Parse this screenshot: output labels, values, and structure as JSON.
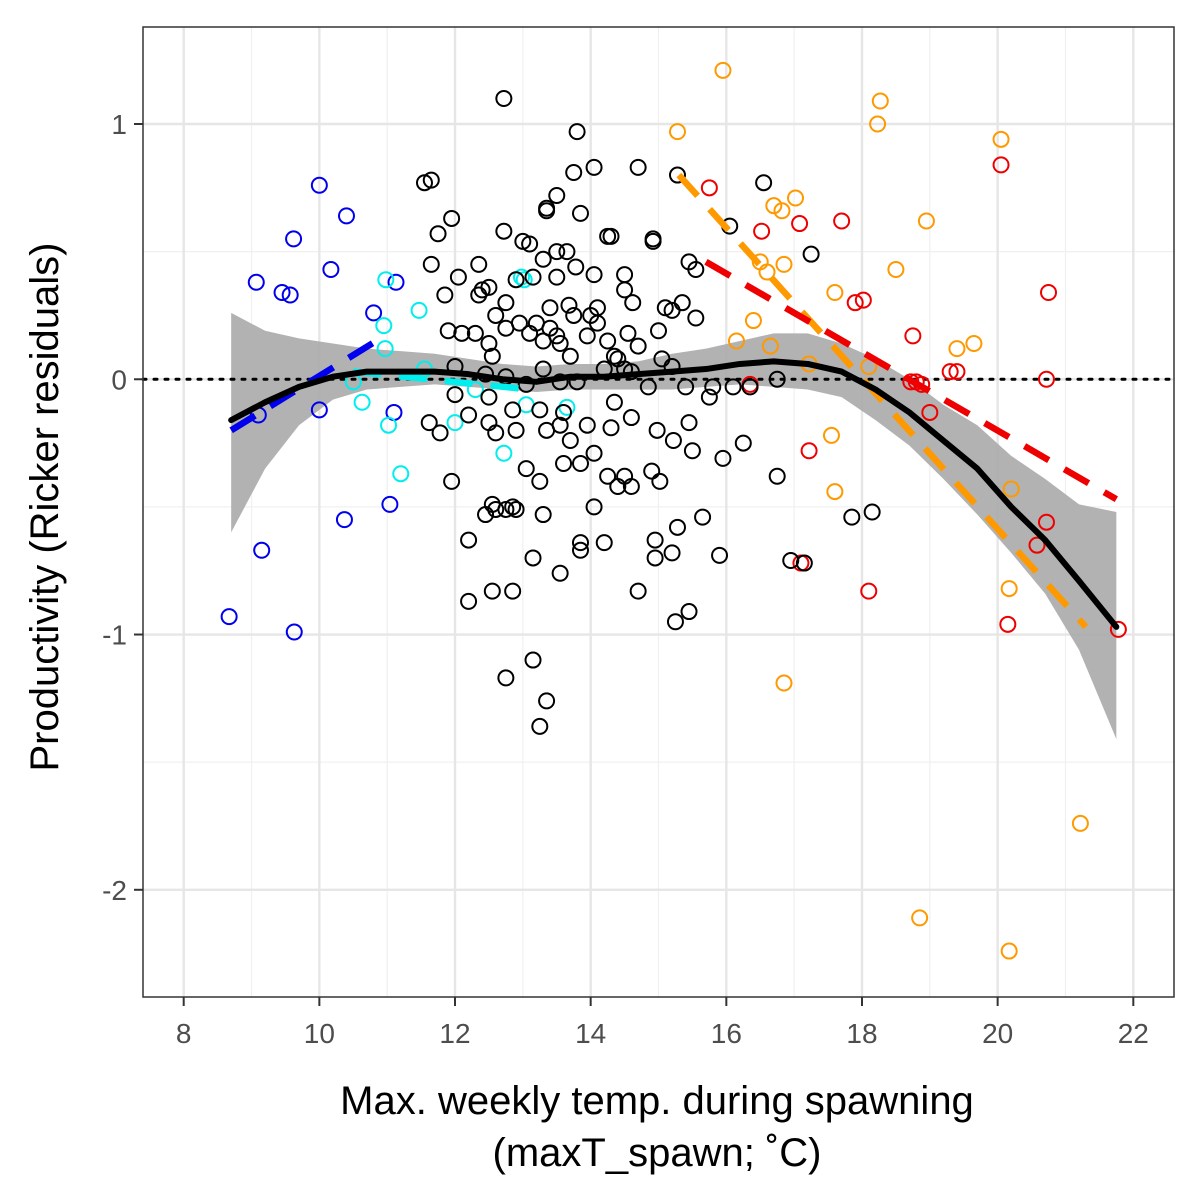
{
  "chart_data": {
    "type": "scatter",
    "xlabel_lines": [
      "Max. weekly temp. during spawning",
      "(maxT_spawn; ˚C)"
    ],
    "ylabel": "Productivity (Ricker residuals)",
    "xlim": [
      7.4,
      22.6
    ],
    "ylim": [
      -2.42,
      1.38
    ],
    "x_ticks": [
      8,
      10,
      12,
      14,
      16,
      18,
      20,
      22
    ],
    "y_ticks": [
      1,
      0,
      -1,
      -2
    ],
    "y_tick_labels": [
      "1",
      "0",
      "-1",
      "-2"
    ],
    "grid": true,
    "reference_line_y": 0,
    "colors": {
      "black": "#000000",
      "blue": "#0000ee",
      "cyan": "#00eeee",
      "red": "#ee0000",
      "orange": "#ff9900",
      "ribbon": "#aaaaaa"
    },
    "series": [
      {
        "color_key": "blue",
        "points": [
          [
            8.67,
            -0.93
          ],
          [
            9.07,
            0.38
          ],
          [
            9.1,
            -0.14
          ],
          [
            9.15,
            -0.67
          ],
          [
            9.45,
            0.34
          ],
          [
            9.57,
            0.33
          ],
          [
            9.62,
            0.55
          ],
          [
            9.63,
            -0.99
          ],
          [
            10.0,
            0.76
          ],
          [
            10.0,
            -0.12
          ],
          [
            10.17,
            0.43
          ],
          [
            10.37,
            -0.55
          ],
          [
            10.4,
            0.64
          ],
          [
            10.8,
            0.26
          ],
          [
            11.04,
            -0.49
          ],
          [
            11.1,
            -0.13
          ],
          [
            11.13,
            0.38
          ]
        ],
        "fit": [
          [
            8.7,
            -0.2
          ],
          [
            10.9,
            0.16
          ]
        ]
      },
      {
        "color_key": "cyan",
        "points": [
          [
            10.5,
            -0.01
          ],
          [
            10.63,
            -0.09
          ],
          [
            10.95,
            0.21
          ],
          [
            10.97,
            0.12
          ],
          [
            10.98,
            0.39
          ],
          [
            11.02,
            -0.18
          ],
          [
            11.2,
            -0.37
          ],
          [
            11.47,
            0.27
          ],
          [
            11.55,
            0.04
          ],
          [
            12.0,
            -0.17
          ],
          [
            12.3,
            -0.04
          ],
          [
            12.72,
            -0.29
          ],
          [
            12.98,
            0.4
          ],
          [
            13.02,
            0.39
          ],
          [
            13.05,
            -0.1
          ],
          [
            13.65,
            -0.11
          ]
        ],
        "fit": [
          [
            10.5,
            0.03
          ],
          [
            13.1,
            -0.04
          ]
        ]
      },
      {
        "color_key": "orange",
        "points": [
          [
            15.28,
            0.97
          ],
          [
            15.95,
            1.21
          ],
          [
            16.5,
            0.46
          ],
          [
            16.6,
            0.42
          ],
          [
            16.65,
            0.13
          ],
          [
            16.7,
            0.68
          ],
          [
            16.82,
            0.66
          ],
          [
            16.85,
            0.45
          ],
          [
            16.85,
            -1.19
          ],
          [
            17.02,
            0.71
          ],
          [
            17.22,
            0.06
          ],
          [
            17.55,
            -0.22
          ],
          [
            17.6,
            -0.44
          ],
          [
            17.6,
            0.34
          ],
          [
            18.1,
            0.05
          ],
          [
            18.23,
            1.0
          ],
          [
            18.27,
            1.09
          ],
          [
            18.5,
            0.43
          ],
          [
            18.85,
            -2.11
          ],
          [
            18.95,
            0.62
          ],
          [
            19.4,
            0.12
          ],
          [
            19.65,
            0.14
          ],
          [
            20.05,
            0.94
          ],
          [
            20.17,
            -0.82
          ],
          [
            20.17,
            -2.24
          ],
          [
            20.2,
            -0.43
          ],
          [
            21.22,
            -1.74
          ],
          [
            16.4,
            0.23
          ],
          [
            16.15,
            0.15
          ]
        ],
        "fit": [
          [
            15.3,
            0.8
          ],
          [
            21.3,
            -0.97
          ]
        ]
      },
      {
        "color_key": "red",
        "points": [
          [
            15.75,
            0.75
          ],
          [
            16.35,
            -0.02
          ],
          [
            16.52,
            0.58
          ],
          [
            17.08,
            0.61
          ],
          [
            17.1,
            -0.72
          ],
          [
            17.22,
            -0.28
          ],
          [
            17.7,
            0.62
          ],
          [
            17.9,
            0.3
          ],
          [
            18.02,
            0.31
          ],
          [
            18.1,
            -0.83
          ],
          [
            18.72,
            -0.01
          ],
          [
            18.75,
            0.17
          ],
          [
            18.8,
            -0.01
          ],
          [
            18.88,
            -0.02
          ],
          [
            19.0,
            -0.13
          ],
          [
            19.3,
            0.03
          ],
          [
            19.4,
            0.03
          ],
          [
            20.05,
            0.84
          ],
          [
            20.15,
            -0.96
          ],
          [
            20.58,
            -0.65
          ],
          [
            20.72,
            -0.56
          ],
          [
            20.72,
            0.0
          ],
          [
            20.75,
            0.34
          ],
          [
            21.78,
            -0.98
          ]
        ],
        "fit": [
          [
            15.7,
            0.46
          ],
          [
            21.75,
            -0.47
          ]
        ]
      },
      {
        "color_key": "black",
        "points": [
          [
            12.72,
            1.1
          ],
          [
            13.8,
            0.97
          ],
          [
            15.28,
            0.8
          ],
          [
            16.55,
            0.77
          ],
          [
            11.55,
            0.77
          ],
          [
            11.65,
            0.78
          ],
          [
            14.05,
            0.83
          ],
          [
            14.7,
            0.83
          ],
          [
            13.75,
            0.81
          ],
          [
            13.5,
            0.72
          ],
          [
            13.85,
            0.65
          ],
          [
            13.35,
            0.67
          ],
          [
            13.35,
            0.66
          ],
          [
            12.72,
            0.58
          ],
          [
            11.95,
            0.63
          ],
          [
            13.0,
            0.54
          ],
          [
            13.1,
            0.53
          ],
          [
            14.25,
            0.56
          ],
          [
            14.3,
            0.56
          ],
          [
            14.92,
            0.55
          ],
          [
            14.92,
            0.54
          ],
          [
            11.75,
            0.57
          ],
          [
            12.05,
            0.4
          ],
          [
            11.65,
            0.45
          ],
          [
            12.35,
            0.45
          ],
          [
            13.78,
            0.44
          ],
          [
            14.05,
            0.41
          ],
          [
            14.5,
            0.41
          ],
          [
            14.5,
            0.35
          ],
          [
            13.3,
            0.47
          ],
          [
            13.5,
            0.5
          ],
          [
            13.65,
            0.5
          ],
          [
            15.45,
            0.46
          ],
          [
            15.55,
            0.43
          ],
          [
            16.05,
            0.6
          ],
          [
            17.25,
            0.49
          ],
          [
            12.4,
            0.35
          ],
          [
            12.5,
            0.36
          ],
          [
            12.9,
            0.39
          ],
          [
            13.15,
            0.4
          ],
          [
            13.5,
            0.4
          ],
          [
            13.4,
            0.28
          ],
          [
            13.68,
            0.29
          ],
          [
            14.1,
            0.28
          ],
          [
            14.62,
            0.3
          ],
          [
            15.35,
            0.3
          ],
          [
            15.1,
            0.28
          ],
          [
            15.2,
            0.27
          ],
          [
            12.35,
            0.33
          ],
          [
            12.75,
            0.3
          ],
          [
            12.6,
            0.25
          ],
          [
            12.75,
            0.2
          ],
          [
            12.95,
            0.22
          ],
          [
            13.2,
            0.22
          ],
          [
            13.4,
            0.2
          ],
          [
            13.5,
            0.17
          ],
          [
            13.55,
            0.14
          ],
          [
            13.75,
            0.25
          ],
          [
            13.95,
            0.17
          ],
          [
            14.0,
            0.25
          ],
          [
            14.1,
            0.22
          ],
          [
            14.25,
            0.15
          ],
          [
            14.4,
            0.08
          ],
          [
            14.55,
            0.18
          ],
          [
            14.7,
            0.13
          ],
          [
            15.0,
            0.19
          ],
          [
            15.55,
            0.24
          ],
          [
            11.85,
            0.33
          ],
          [
            11.9,
            0.19
          ],
          [
            12.1,
            0.18
          ],
          [
            12.3,
            0.18
          ],
          [
            12.5,
            0.14
          ],
          [
            12.55,
            0.09
          ],
          [
            13.1,
            0.18
          ],
          [
            13.3,
            0.15
          ],
          [
            13.7,
            0.09
          ],
          [
            14.35,
            0.09
          ],
          [
            14.5,
            0.04
          ],
          [
            15.05,
            0.08
          ],
          [
            12.0,
            0.05
          ],
          [
            12.45,
            0.02
          ],
          [
            12.75,
            0.01
          ],
          [
            13.05,
            -0.02
          ],
          [
            13.3,
            0.04
          ],
          [
            13.55,
            -0.01
          ],
          [
            13.8,
            -0.01
          ],
          [
            14.2,
            0.04
          ],
          [
            14.6,
            0.03
          ],
          [
            14.85,
            -0.03
          ],
          [
            15.2,
            0.05
          ],
          [
            15.4,
            -0.03
          ],
          [
            15.8,
            -0.03
          ],
          [
            16.1,
            -0.03
          ],
          [
            16.35,
            -0.03
          ],
          [
            16.75,
            0.0
          ],
          [
            12.0,
            -0.06
          ],
          [
            12.5,
            -0.07
          ],
          [
            12.85,
            -0.12
          ],
          [
            13.25,
            -0.12
          ],
          [
            13.6,
            -0.13
          ],
          [
            14.35,
            -0.09
          ],
          [
            15.75,
            -0.07
          ],
          [
            11.62,
            -0.17
          ],
          [
            11.78,
            -0.21
          ],
          [
            12.2,
            -0.14
          ],
          [
            12.5,
            -0.17
          ],
          [
            12.6,
            -0.21
          ],
          [
            12.9,
            -0.2
          ],
          [
            13.35,
            -0.2
          ],
          [
            13.55,
            -0.18
          ],
          [
            13.7,
            -0.24
          ],
          [
            13.95,
            -0.18
          ],
          [
            14.3,
            -0.19
          ],
          [
            14.6,
            -0.15
          ],
          [
            14.98,
            -0.2
          ],
          [
            15.22,
            -0.24
          ],
          [
            15.45,
            -0.17
          ],
          [
            16.25,
            -0.25
          ],
          [
            13.6,
            -0.33
          ],
          [
            13.85,
            -0.33
          ],
          [
            14.05,
            -0.29
          ],
          [
            14.25,
            -0.38
          ],
          [
            14.5,
            -0.38
          ],
          [
            14.9,
            -0.36
          ],
          [
            15.02,
            -0.4
          ],
          [
            15.5,
            -0.28
          ],
          [
            15.95,
            -0.31
          ],
          [
            16.75,
            -0.38
          ],
          [
            11.95,
            -0.4
          ],
          [
            12.55,
            -0.49
          ],
          [
            12.85,
            -0.5
          ],
          [
            13.05,
            -0.35
          ],
          [
            13.25,
            -0.4
          ],
          [
            14.4,
            -0.42
          ],
          [
            14.6,
            -0.42
          ],
          [
            14.05,
            -0.5
          ],
          [
            12.45,
            -0.53
          ],
          [
            12.6,
            -0.51
          ],
          [
            12.75,
            -0.51
          ],
          [
            13.3,
            -0.53
          ],
          [
            15.28,
            -0.58
          ],
          [
            15.65,
            -0.54
          ],
          [
            16.95,
            -0.71
          ],
          [
            17.15,
            -0.72
          ],
          [
            17.85,
            -0.54
          ],
          [
            18.15,
            -0.52
          ],
          [
            12.2,
            -0.63
          ],
          [
            12.9,
            -0.51
          ],
          [
            13.85,
            -0.64
          ],
          [
            13.85,
            -0.67
          ],
          [
            14.2,
            -0.64
          ],
          [
            14.95,
            -0.63
          ],
          [
            14.95,
            -0.7
          ],
          [
            15.2,
            -0.68
          ],
          [
            15.9,
            -0.69
          ],
          [
            13.15,
            -0.7
          ],
          [
            13.55,
            -0.76
          ],
          [
            14.7,
            -0.83
          ],
          [
            15.25,
            -0.95
          ],
          [
            15.45,
            -0.91
          ],
          [
            12.2,
            -0.87
          ],
          [
            12.55,
            -0.83
          ],
          [
            12.85,
            -0.83
          ],
          [
            12.75,
            -1.17
          ],
          [
            13.15,
            -1.1
          ],
          [
            13.35,
            -1.26
          ],
          [
            13.25,
            -1.36
          ]
        ]
      }
    ],
    "smooth_line": [
      [
        8.7,
        -0.16
      ],
      [
        9.2,
        -0.09
      ],
      [
        9.7,
        -0.03
      ],
      [
        10.2,
        0.01
      ],
      [
        10.7,
        0.03
      ],
      [
        11.2,
        0.03
      ],
      [
        11.7,
        0.03
      ],
      [
        12.2,
        0.02
      ],
      [
        12.7,
        0.0
      ],
      [
        13.2,
        -0.01
      ],
      [
        13.7,
        0.01
      ],
      [
        14.2,
        0.01
      ],
      [
        14.7,
        0.02
      ],
      [
        15.2,
        0.03
      ],
      [
        15.7,
        0.04
      ],
      [
        16.2,
        0.06
      ],
      [
        16.7,
        0.07
      ],
      [
        17.2,
        0.06
      ],
      [
        17.7,
        0.03
      ],
      [
        18.2,
        -0.04
      ],
      [
        18.7,
        -0.13
      ],
      [
        19.2,
        -0.24
      ],
      [
        19.7,
        -0.35
      ],
      [
        20.2,
        -0.5
      ],
      [
        20.7,
        -0.63
      ],
      [
        21.2,
        -0.79
      ],
      [
        21.75,
        -0.97
      ]
    ],
    "ribbon": [
      [
        8.7,
        -0.6,
        0.26
      ],
      [
        9.2,
        -0.35,
        0.19
      ],
      [
        9.7,
        -0.18,
        0.16
      ],
      [
        10.2,
        -0.08,
        0.14
      ],
      [
        10.7,
        -0.04,
        0.12
      ],
      [
        11.2,
        -0.03,
        0.11
      ],
      [
        11.7,
        -0.02,
        0.1
      ],
      [
        12.2,
        -0.03,
        0.08
      ],
      [
        12.7,
        -0.04,
        0.06
      ],
      [
        13.2,
        -0.05,
        0.05
      ],
      [
        13.7,
        -0.04,
        0.06
      ],
      [
        14.2,
        -0.04,
        0.06
      ],
      [
        14.7,
        -0.04,
        0.07
      ],
      [
        15.2,
        -0.04,
        0.1
      ],
      [
        15.7,
        -0.03,
        0.12
      ],
      [
        16.2,
        -0.02,
        0.15
      ],
      [
        16.7,
        -0.03,
        0.18
      ],
      [
        17.2,
        -0.04,
        0.18
      ],
      [
        17.7,
        -0.07,
        0.14
      ],
      [
        18.2,
        -0.16,
        0.08
      ],
      [
        18.7,
        -0.26,
        0.0
      ],
      [
        19.2,
        -0.39,
        -0.1
      ],
      [
        19.7,
        -0.53,
        -0.18
      ],
      [
        20.2,
        -0.68,
        -0.3
      ],
      [
        20.7,
        -0.84,
        -0.39
      ],
      [
        21.2,
        -1.06,
        -0.49
      ],
      [
        21.75,
        -1.41,
        -0.52
      ]
    ]
  }
}
